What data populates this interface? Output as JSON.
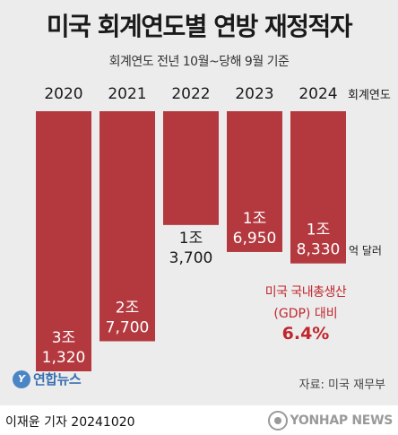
{
  "title": "미국 회계연도별 연방 재정적자",
  "subtitle": "회계연도 전년 10월~당해 9월 기준",
  "fy_suffix": "회계연도",
  "unit_label": "억 달러",
  "gdp_note": {
    "line1": "미국 국내총생산",
    "line2": "(GDP) 대비",
    "value": "6.4%"
  },
  "logo_text": "연합뉴스",
  "source": "자료: 미국 재무부",
  "reporter": "이재윤 기자  20241020",
  "watermark": "YONHAP NEWS",
  "colors": {
    "bar": "#b3393f",
    "accent_red": "#c0272d"
  },
  "chart_data": {
    "type": "bar",
    "title": "미국 회계연도별 연방 재정적자",
    "subtitle": "회계연도 전년 10월~당해 9월 기준",
    "categories": [
      "2020",
      "2021",
      "2022",
      "2023",
      "2024"
    ],
    "values": [
      31320,
      27700,
      13700,
      16950,
      18330
    ],
    "value_labels": [
      [
        "3조",
        "1,320"
      ],
      [
        "2조",
        "7,700"
      ],
      [
        "1조",
        "3,700"
      ],
      [
        "1조",
        "6,950"
      ],
      [
        "1조",
        "8,330"
      ]
    ],
    "unit": "억 달러",
    "orientation": "downward",
    "grid": false
  }
}
